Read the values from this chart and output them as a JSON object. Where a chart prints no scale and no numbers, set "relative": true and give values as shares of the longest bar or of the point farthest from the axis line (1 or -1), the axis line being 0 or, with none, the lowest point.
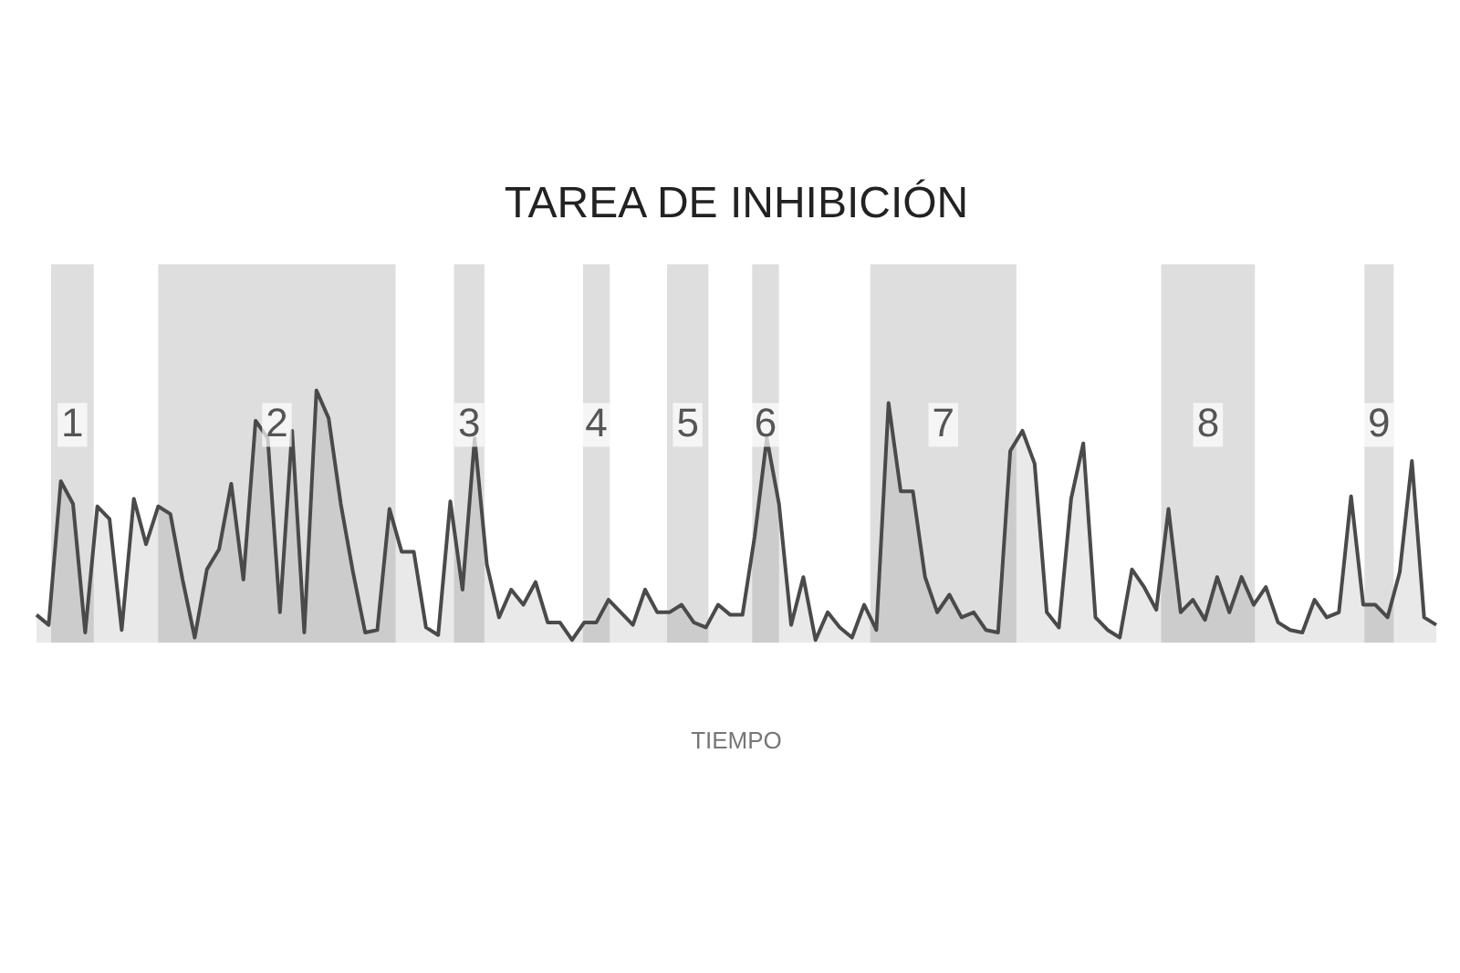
{
  "chart_data": {
    "type": "area",
    "title": "TAREA DE INHIBICIÓN",
    "xlabel": "TIEMPO",
    "relative": true,
    "annotations": [
      "1",
      "2",
      "3",
      "4",
      "5",
      "6",
      "7",
      "8",
      "9"
    ],
    "categories": [
      null,
      null,
      null,
      null,
      null,
      null,
      null,
      null,
      null,
      null,
      null,
      null,
      null,
      null,
      null,
      null,
      null,
      null,
      null,
      null,
      null,
      null,
      null,
      null,
      null,
      null,
      null,
      null,
      null,
      null,
      null,
      null,
      null,
      null,
      null,
      null,
      null,
      null,
      null,
      null,
      null,
      null,
      null,
      null,
      null,
      null,
      null,
      null,
      null,
      null,
      null,
      null,
      null,
      null,
      null,
      null,
      null,
      null,
      null,
      null,
      null,
      null,
      null,
      null,
      null,
      null,
      null,
      null,
      null,
      null,
      null,
      null,
      null,
      null,
      null,
      null,
      null,
      null,
      null,
      null,
      null,
      null,
      null,
      null,
      null,
      null,
      null,
      null,
      null,
      null,
      null,
      null,
      null,
      null,
      null,
      null,
      null,
      null,
      null,
      null,
      null,
      null,
      null,
      null,
      null,
      null,
      null,
      null,
      null,
      null,
      null,
      null,
      null,
      null,
      null,
      null
    ],
    "series": [
      {
        "color": "#4a4a4a",
        "values": [
          0.11,
          0.07,
          0.64,
          0.55,
          0.04,
          0.54,
          0.49,
          0.05,
          0.57,
          0.39,
          0.54,
          0.51,
          0.25,
          0.02,
          0.29,
          0.37,
          0.63,
          0.25,
          0.88,
          0.81,
          0.12,
          0.84,
          0.04,
          1,
          0.89,
          0.55,
          0.28,
          0.04,
          0.05,
          0.53,
          0.36,
          0.36,
          0.06,
          0.03,
          0.56,
          0.21,
          0.81,
          0.31,
          0.1,
          0.21,
          0.15,
          0.24,
          0.08,
          0.08,
          0.01,
          0.08,
          0.08,
          0.17,
          0.12,
          0.07,
          0.21,
          0.12,
          0.12,
          0.15,
          0.08,
          0.06,
          0.15,
          0.11,
          0.11,
          0.42,
          0.81,
          0.55,
          0.07,
          0.26,
          0.01,
          0.12,
          0.06,
          0.02,
          0.15,
          0.05,
          0.95,
          0.6,
          0.6,
          0.26,
          0.12,
          0.19,
          0.1,
          0.12,
          0.05,
          0.04,
          0.76,
          0.84,
          0.71,
          0.12,
          0.06,
          0.57,
          0.79,
          0.1,
          0.05,
          0.02,
          0.29,
          0.22,
          0.13,
          0.53,
          0.12,
          0.17,
          0.09,
          0.26,
          0.12,
          0.26,
          0.15,
          0.22,
          0.08,
          0.05,
          0.04,
          0.17,
          0.1,
          0.12,
          0.58,
          0.15,
          0.15,
          0.1,
          0.28,
          0.72,
          0.1,
          0.07
        ]
      }
    ],
    "legend": false
  }
}
